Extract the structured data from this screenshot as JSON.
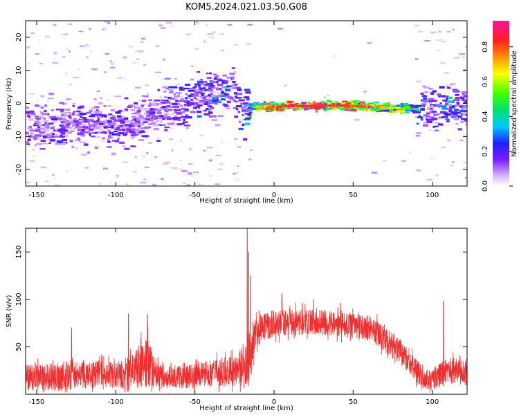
{
  "title": "KOM5.2024.021.03.50.G08",
  "chart_data": [
    {
      "type": "heatmap",
      "xlabel": "Height of straight line (km)",
      "ylabel": "Frequency (Hz)",
      "xlim": [
        -157,
        122
      ],
      "ylim": [
        -25,
        25
      ],
      "x_ticks": [
        -150,
        -100,
        -50,
        0,
        50,
        100
      ],
      "x_tick_labels": [
        "-150",
        "-100",
        "-50",
        "0",
        "50",
        "100"
      ],
      "y_ticks": [
        -20,
        -10,
        0,
        10,
        20
      ],
      "y_tick_labels": [
        "-20",
        "-10",
        "0",
        "10",
        "20"
      ],
      "colorbar": {
        "label": "Normalized spectral amplitude",
        "range": [
          0,
          0.95
        ],
        "ticks": [
          0.0,
          0.2,
          0.4,
          0.6,
          0.8
        ],
        "tick_labels": [
          "0.0",
          "0.2",
          "0.4",
          "0.6",
          "0.8"
        ]
      },
      "ridge": {
        "x": [
          -157,
          -140,
          -120,
          -100,
          -80,
          -70,
          -60,
          -50,
          -40,
          -30,
          -25,
          -20,
          -15,
          -10,
          0,
          10,
          20,
          30,
          40,
          50,
          60,
          70,
          80,
          90,
          95,
          100,
          105,
          110,
          115,
          122
        ],
        "y": [
          -8,
          -7,
          -6.5,
          -6,
          -4,
          -2,
          -1,
          1,
          3,
          4,
          3,
          -3,
          -1,
          -1,
          -1,
          -0.8,
          -0.8,
          -0.6,
          -0.6,
          -0.8,
          -1,
          -1.3,
          -1.5,
          -1.7,
          -1.8,
          -1.2,
          -1,
          -0.5,
          -0.5,
          -1
        ],
        "amplitude": [
          0.18,
          0.18,
          0.2,
          0.2,
          0.18,
          0.2,
          0.22,
          0.26,
          0.28,
          0.3,
          0.22,
          0.25,
          0.45,
          0.7,
          0.82,
          0.88,
          0.9,
          0.92,
          0.9,
          0.88,
          0.82,
          0.72,
          0.6,
          0.45,
          0.25,
          0.2,
          0.3,
          0.4,
          0.3,
          0.2
        ]
      }
    },
    {
      "type": "line",
      "xlabel": "Height of straight line (km)",
      "ylabel": "SNR (v/v)",
      "xlim": [
        -157,
        122
      ],
      "ylim": [
        0,
        175
      ],
      "x_ticks": [
        -150,
        -100,
        -50,
        0,
        50,
        100
      ],
      "x_tick_labels": [
        "-150",
        "-100",
        "-50",
        "0",
        "50",
        "100"
      ],
      "y_ticks": [
        50,
        100,
        150
      ],
      "y_tick_labels": [
        "50",
        "100",
        "150"
      ],
      "color": "#f03030",
      "envelope": {
        "x": [
          -157,
          -140,
          -128,
          -120,
          -110,
          -100,
          -90,
          -85,
          -80,
          -75,
          -70,
          -60,
          -50,
          -40,
          -30,
          -25,
          -20,
          -18,
          -16,
          -15,
          -12,
          -10,
          -5,
          0,
          10,
          20,
          30,
          40,
          50,
          60,
          65,
          70,
          80,
          90,
          95,
          100,
          105,
          110,
          115,
          122
        ],
        "mean": [
          18,
          18,
          20,
          20,
          22,
          20,
          24,
          30,
          34,
          22,
          18,
          18,
          20,
          22,
          24,
          25,
          28,
          30,
          32,
          45,
          62,
          68,
          72,
          74,
          76,
          76,
          76,
          74,
          72,
          70,
          65,
          58,
          45,
          25,
          15,
          15,
          20,
          25,
          25,
          22
        ],
        "spread": [
          14,
          15,
          16,
          14,
          14,
          14,
          18,
          24,
          26,
          15,
          12,
          12,
          13,
          14,
          16,
          16,
          18,
          22,
          25,
          22,
          16,
          15,
          15,
          14,
          14,
          14,
          13,
          13,
          13,
          13,
          14,
          14,
          13,
          12,
          10,
          11,
          13,
          14,
          14,
          13
        ]
      },
      "spikes": [
        {
          "x": -128,
          "y": 70
        },
        {
          "x": -92,
          "y": 85
        },
        {
          "x": -80,
          "y": 84
        },
        {
          "x": -17,
          "y": 175
        },
        {
          "x": -16,
          "y": 150
        },
        {
          "x": -15,
          "y": 125
        },
        {
          "x": 5,
          "y": 106
        },
        {
          "x": 25,
          "y": 100
        },
        {
          "x": 42,
          "y": 96
        },
        {
          "x": 107,
          "y": 98
        }
      ]
    }
  ]
}
